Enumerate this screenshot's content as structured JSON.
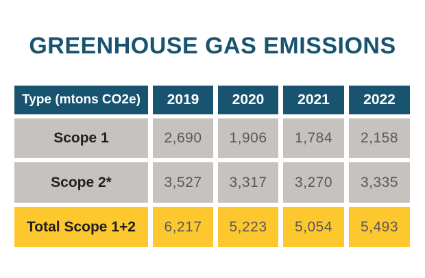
{
  "title": "GREENHOUSE GAS EMISSIONS",
  "table": {
    "header": {
      "type": "Type (mtons CO2e)",
      "y2019": "2019",
      "y2020": "2020",
      "y2021": "2021",
      "y2022": "2022"
    },
    "rows": [
      {
        "label": "Scope 1",
        "v1": "2,690",
        "v2": "1,906",
        "v3": "1,784",
        "v4": "2,158"
      },
      {
        "label": "Scope 2*",
        "v1": "3,527",
        "v2": "3,317",
        "v3": "3,270",
        "v4": "3,335"
      },
      {
        "label": "Total Scope 1+2",
        "v1": "6,217",
        "v2": "5,223",
        "v3": "5,054",
        "v4": "5,493"
      }
    ]
  },
  "colors": {
    "teal": "#18536f",
    "gray": "#c5c2bf",
    "yellow": "#fdc72e",
    "label-text": "#211e1f",
    "value-text": "#58595b"
  },
  "chart_data": {
    "type": "table",
    "title": "GREENHOUSE GAS EMISSIONS",
    "unit": "mtons CO2e",
    "columns": [
      "Type (mtons CO2e)",
      "2019",
      "2020",
      "2021",
      "2022"
    ],
    "rows": [
      {
        "label": "Scope 1",
        "values": [
          2690,
          1906,
          1784,
          2158
        ]
      },
      {
        "label": "Scope 2*",
        "values": [
          3527,
          3317,
          3270,
          3335
        ]
      },
      {
        "label": "Total Scope 1+2",
        "values": [
          6217,
          5223,
          5054,
          5493
        ]
      }
    ]
  }
}
